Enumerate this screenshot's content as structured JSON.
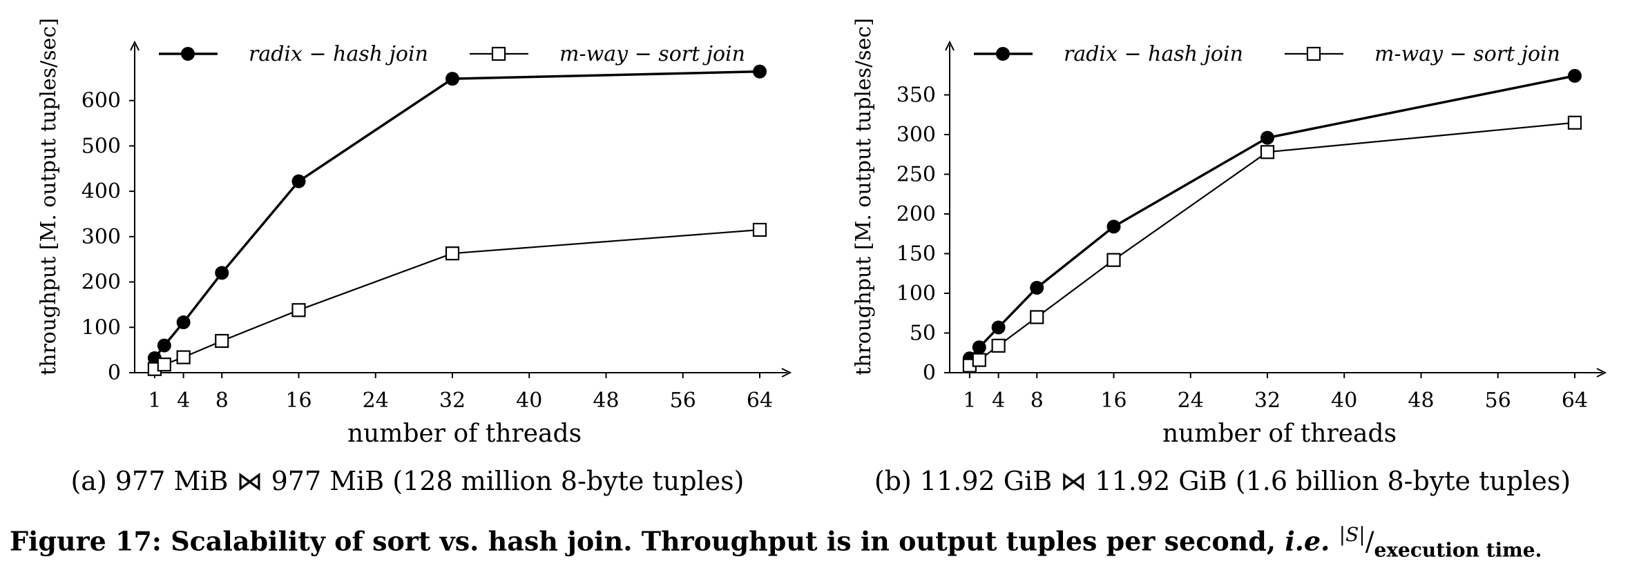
{
  "chart_data": [
    {
      "id": "a",
      "type": "line",
      "xlabel": "number of threads",
      "ylabel": "throughput [M. output tuples/sec]",
      "xlim": [
        0,
        64
      ],
      "ylim": [
        0,
        700
      ],
      "xticks": [
        1,
        4,
        8,
        16,
        24,
        32,
        40,
        48,
        56,
        64
      ],
      "yticks": [
        0,
        100,
        200,
        300,
        400,
        500,
        600
      ],
      "legend_position": "top",
      "caption": "(a) 977 MiB ⋈ 977 MiB (128 million 8-byte tuples)",
      "series": [
        {
          "name": "radix − hash join",
          "marker": "filled-circle",
          "x": [
            1,
            2,
            4,
            8,
            16,
            32,
            64
          ],
          "y": [
            32,
            60,
            111,
            220,
            422,
            648,
            664
          ]
        },
        {
          "name": "m-way − sort join",
          "marker": "open-square",
          "x": [
            1,
            2,
            4,
            8,
            16,
            32,
            64
          ],
          "y": [
            8,
            18,
            34,
            70,
            138,
            263,
            315
          ]
        }
      ]
    },
    {
      "id": "b",
      "type": "line",
      "xlabel": "number of threads",
      "ylabel": "throughput [M. output tuples/sec]",
      "xlim": [
        0,
        64
      ],
      "ylim": [
        0,
        400
      ],
      "xticks": [
        1,
        4,
        8,
        16,
        24,
        32,
        40,
        48,
        56,
        64
      ],
      "yticks": [
        0,
        50,
        100,
        150,
        200,
        250,
        300,
        350
      ],
      "legend_position": "top",
      "caption": "(b) 11.92 GiB ⋈ 11.92 GiB (1.6 billion 8-byte tuples)",
      "series": [
        {
          "name": "radix − hash join",
          "marker": "filled-circle",
          "x": [
            1,
            2,
            4,
            8,
            16,
            32,
            64
          ],
          "y": [
            18,
            32,
            57,
            107,
            184,
            296,
            374
          ]
        },
        {
          "name": "m-way − sort join",
          "marker": "open-square",
          "x": [
            1,
            2,
            4,
            8,
            16,
            32,
            64
          ],
          "y": [
            9,
            16,
            34,
            70,
            142,
            278,
            315
          ]
        }
      ]
    }
  ],
  "figure": {
    "prefix": "Figure 17:",
    "text": "Scalability of sort vs. hash join. Throughput is in output tuples per second,",
    "ie": "i.e.",
    "fraction_num": "|S|",
    "fraction_sep": "/",
    "fraction_den": "execution time."
  },
  "colors": {
    "line": "#000000",
    "background": "#ffffff"
  }
}
